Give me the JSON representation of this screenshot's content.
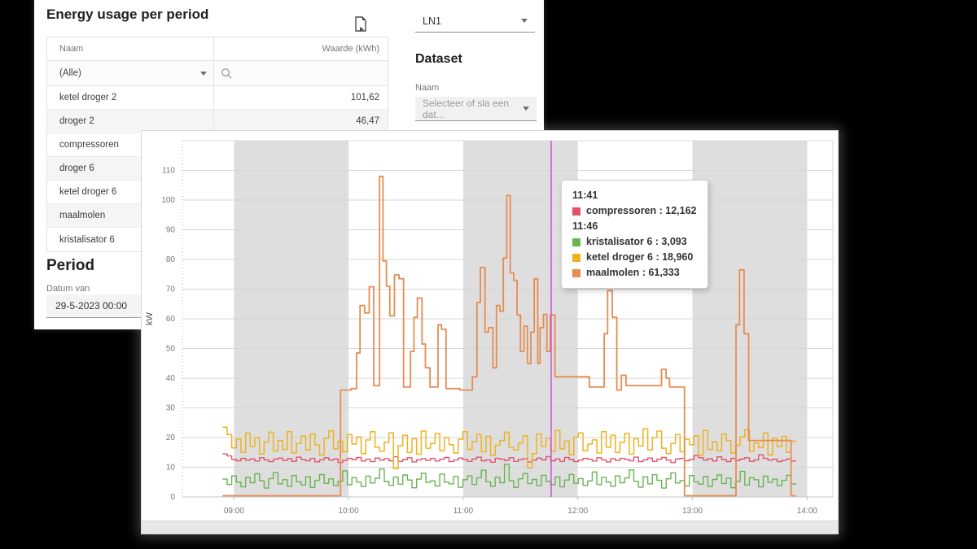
{
  "background": "#000000",
  "left_panel": {
    "title": "Energy usage per period",
    "table": {
      "columns": [
        "Naam",
        "Waarde (kWh)"
      ],
      "filter": {
        "naam": "(Alle)"
      },
      "rows": [
        {
          "naam": "ketel droger 2",
          "waarde": "101,62"
        },
        {
          "naam": "droger 2",
          "waarde": "46,47"
        },
        {
          "naam": "compressoren",
          "waarde": ""
        },
        {
          "naam": "droger 6",
          "waarde": ""
        },
        {
          "naam": "ketel droger 6",
          "waarde": ""
        },
        {
          "naam": "maalmolen",
          "waarde": ""
        },
        {
          "naam": "kristalisator 6",
          "waarde": ""
        }
      ]
    },
    "period": {
      "heading": "Period",
      "label": "Datum van",
      "value": "29-5-2023 00:00"
    }
  },
  "controls": {
    "ln_select": {
      "value": "LN1"
    },
    "dataset": {
      "heading": "Dataset",
      "label": "Naam",
      "placeholder": "Selecteer of sla een dat..."
    }
  },
  "tooltip": {
    "time1": "11:41",
    "rows1": [
      {
        "label": "compressoren",
        "value": "12,162",
        "color": "#e0536e"
      }
    ],
    "time2": "11:46",
    "rows2": [
      {
        "label": "kristalisator 6",
        "value": "3,093",
        "color": "#69b453"
      },
      {
        "label": "ketel droger 6",
        "value": "18,960",
        "color": "#edb220"
      },
      {
        "label": "maalmolen",
        "value": "61,333",
        "color": "#e78c52"
      }
    ]
  },
  "chart_data": {
    "type": "line",
    "title": "",
    "xlabel": "",
    "ylabel": "kW",
    "ylim": [
      0,
      120
    ],
    "y_ticks": [
      0,
      10,
      20,
      30,
      40,
      50,
      60,
      70,
      80,
      90,
      100,
      110
    ],
    "xlim_hours": [
      8.55,
      14.225
    ],
    "x_ticks": [
      {
        "hour": 9,
        "label": "09:00"
      },
      {
        "hour": 10,
        "label": "10:00"
      },
      {
        "hour": 11,
        "label": "11:00"
      },
      {
        "hour": 12,
        "label": "12:00"
      },
      {
        "hour": 13,
        "label": "13:00"
      },
      {
        "hour": 14,
        "label": "14:00"
      }
    ],
    "bands": [
      [
        9,
        10
      ],
      [
        11,
        12
      ],
      [
        13,
        14
      ]
    ],
    "cursor_hour": 11.767,
    "colors": {
      "band": "#dedede",
      "grid": "#d6d6d6",
      "axis_text": "#767676",
      "cursor": "#cb51d6",
      "border": "#d9d9d9"
    },
    "legend_position": "tooltip",
    "series": [
      {
        "name": "compressoren",
        "color": "#e0536e",
        "width": 1.4,
        "start_hour": 8.9,
        "end_hour": 13.9,
        "values": [
          14.5,
          13.8,
          12.6,
          12.2,
          13,
          12.4,
          12.8,
          12.1,
          13.2,
          12.5,
          11.9,
          12.7,
          13.1,
          12.3,
          12.9,
          12,
          13.4,
          12.6,
          12.2,
          13,
          11.8,
          12.5,
          13.2,
          12.4,
          12.8,
          11.6,
          12.3,
          13,
          12.6,
          13.3,
          12.1,
          12.7,
          11.9,
          13.1,
          12.4,
          12.9,
          12.2,
          13.5,
          12,
          12.6,
          13.2,
          11.8,
          12.5,
          12.9,
          12.3,
          13,
          12.1,
          12.7,
          13.3,
          11.9,
          12.4,
          13.1,
          12.6,
          12,
          12.8,
          13.4,
          12.2,
          12.5,
          11.7,
          13,
          12.7,
          12.3,
          13.2,
          12,
          12.6,
          12.9,
          11.8,
          12.4,
          13.1,
          12.5,
          13.6,
          12.2,
          12.8,
          12,
          13.3,
          12.6,
          11.9,
          12.4,
          13,
          12.7,
          12.1,
          13.2,
          12.5,
          11.8,
          12.9,
          12.3,
          13,
          12.6,
          12.2,
          13.4,
          11.9,
          12.5,
          13.1,
          12,
          12.7,
          13.3,
          12.4,
          11.6,
          12.8,
          13,
          12.2,
          12.6,
          14,
          13.2,
          12.4,
          12.9,
          12.1,
          13.5,
          12.6,
          11.9,
          13,
          12.3,
          12.8,
          13.2,
          12,
          12.5,
          14.2,
          13,
          12.4,
          12.7,
          11.9,
          12.3,
          12.8,
          12.1,
          11.9
        ]
      },
      {
        "name": "kristalisator 6",
        "color": "#69b453",
        "width": 1.4,
        "start_hour": 8.9,
        "end_hour": 13.9,
        "values": [
          6,
          4.2,
          7.1,
          5,
          3.4,
          6.6,
          4.8,
          7.8,
          5.5,
          3,
          6.2,
          8.2,
          4.4,
          5.8,
          3.6,
          7.2,
          5.1,
          4,
          6.8,
          3.2,
          5.6,
          7.5,
          4.6,
          6.1,
          3.8,
          5.3,
          8.8,
          4.1,
          6.5,
          5,
          3.5,
          7,
          4.7,
          6.3,
          9.4,
          5.2,
          3.9,
          6.7,
          4.3,
          7.4,
          5.7,
          3.1,
          6,
          8,
          4.9,
          5.4,
          3.7,
          7.7,
          5,
          4.4,
          6.9,
          3.3,
          5.8,
          7.1,
          4.2,
          6.4,
          9,
          5.1,
          3.6,
          6.6,
          4.8,
          11,
          5.5,
          3.2,
          6.1,
          7.9,
          4.5,
          5.9,
          3.8,
          7.3,
          5.2,
          4.1,
          6.7,
          3.4,
          5.7,
          7.6,
          4.6,
          6.2,
          3.9,
          5.4,
          8.4,
          4.2,
          6.6,
          5,
          3.6,
          7.1,
          4.8,
          6.4,
          9.1,
          5.3,
          3.3,
          6.8,
          4.4,
          7.5,
          5.6,
          3,
          6.1,
          8.1,
          4.7,
          5.5,
          3.7,
          7.2,
          5.1,
          4.3,
          6.9,
          3.5,
          5.9,
          7.4,
          4.5,
          6.3,
          3.1,
          5.2,
          8.6,
          4,
          6.5,
          5.8,
          3.4,
          7,
          4.9,
          6,
          3.8,
          5.6,
          7.3,
          4.4,
          4
        ]
      },
      {
        "name": "ketel droger 6",
        "color": "#edb220",
        "width": 1.5,
        "start_hour": 8.9,
        "end_hour": 13.9,
        "values": [
          23.5,
          21,
          16.5,
          19.5,
          15,
          21.5,
          17,
          20,
          14.5,
          18.5,
          21.8,
          15.5,
          19,
          16,
          22,
          14.8,
          18,
          20.5,
          15.8,
          21.2,
          17.5,
          14.2,
          19.8,
          22.3,
          16.2,
          18.8,
          15.2,
          21,
          17.8,
          20.2,
          14.6,
          19.2,
          22,
          16.8,
          15.4,
          18.4,
          21.6,
          9.5,
          17.2,
          20.8,
          15,
          19.6,
          14.4,
          22.2,
          16.4,
          18,
          21.4,
          15.6,
          20,
          17.6,
          14.8,
          19.4,
          22,
          16,
          18.6,
          21,
          15.2,
          20.4,
          14,
          17.4,
          19,
          21.8,
          16.6,
          15.8,
          18.2,
          20.6,
          9.8,
          14.6,
          21.2,
          17,
          19.8,
          15.4,
          22.4,
          16.2,
          18.8,
          14.2,
          20.2,
          21.6,
          15.6,
          17.8,
          19.2,
          14.8,
          22,
          16.8,
          20.8,
          15,
          18.4,
          21.4,
          14.4,
          19.6,
          17.2,
          23,
          15.8,
          20,
          22.2,
          16.4,
          14.6,
          18,
          21,
          15.2,
          19.4,
          17.6,
          20.6,
          14,
          22.4,
          16,
          18.6,
          15.6,
          21.2,
          19,
          14.8,
          17.4,
          20.2,
          22.6,
          15.4,
          18.2,
          16.6,
          21.6,
          14.2,
          19.8,
          17,
          20.4,
          15,
          18.8,
          18.5
        ]
      },
      {
        "name": "maalmolen",
        "color": "#e78c52",
        "width": 1.8,
        "points": [
          [
            8.9,
            0.4
          ],
          [
            9.93,
            36
          ],
          [
            10.02,
            36.5
          ],
          [
            10.07,
            48.5
          ],
          [
            10.1,
            64.5
          ],
          [
            10.14,
            62
          ],
          [
            10.18,
            70.8
          ],
          [
            10.22,
            37.5
          ],
          [
            10.27,
            108
          ],
          [
            10.3,
            79.5
          ],
          [
            10.33,
            71
          ],
          [
            10.36,
            61
          ],
          [
            10.4,
            74.8
          ],
          [
            10.44,
            73.5
          ],
          [
            10.48,
            37
          ],
          [
            10.54,
            49
          ],
          [
            10.57,
            60.5
          ],
          [
            10.6,
            67
          ],
          [
            10.64,
            51.5
          ],
          [
            10.67,
            43.5
          ],
          [
            10.71,
            37
          ],
          [
            10.78,
            58
          ],
          [
            10.81,
            56.5
          ],
          [
            10.85,
            36.5
          ],
          [
            10.97,
            36
          ],
          [
            11.08,
            40.5
          ],
          [
            11.12,
            65.5
          ],
          [
            11.15,
            77.3
          ],
          [
            11.19,
            55.5
          ],
          [
            11.22,
            57
          ],
          [
            11.26,
            43.5
          ],
          [
            11.29,
            64.5
          ],
          [
            11.32,
            62.5
          ],
          [
            11.35,
            80.5
          ],
          [
            11.38,
            101.5
          ],
          [
            11.41,
            75.5
          ],
          [
            11.44,
            73
          ],
          [
            11.47,
            61.3
          ],
          [
            11.5,
            49
          ],
          [
            11.53,
            57.5
          ],
          [
            11.56,
            45
          ],
          [
            11.59,
            55.5
          ],
          [
            11.62,
            73.5
          ],
          [
            11.65,
            45
          ],
          [
            11.67,
            57
          ],
          [
            11.7,
            61.5
          ],
          [
            11.73,
            49
          ],
          [
            11.76,
            61.3
          ],
          [
            11.8,
            40.5
          ],
          [
            12.1,
            37
          ],
          [
            12.23,
            55
          ],
          [
            12.26,
            69.5
          ],
          [
            12.3,
            60.5
          ],
          [
            12.34,
            36
          ],
          [
            12.38,
            41
          ],
          [
            12.42,
            37.5
          ],
          [
            12.73,
            43
          ],
          [
            12.77,
            40
          ],
          [
            12.8,
            37
          ],
          [
            12.93,
            0.4
          ],
          [
            13.38,
            58
          ],
          [
            13.41,
            76.5
          ],
          [
            13.45,
            55
          ],
          [
            13.49,
            19
          ],
          [
            13.86,
            0.4
          ],
          [
            13.9,
            0.4
          ]
        ]
      }
    ]
  }
}
